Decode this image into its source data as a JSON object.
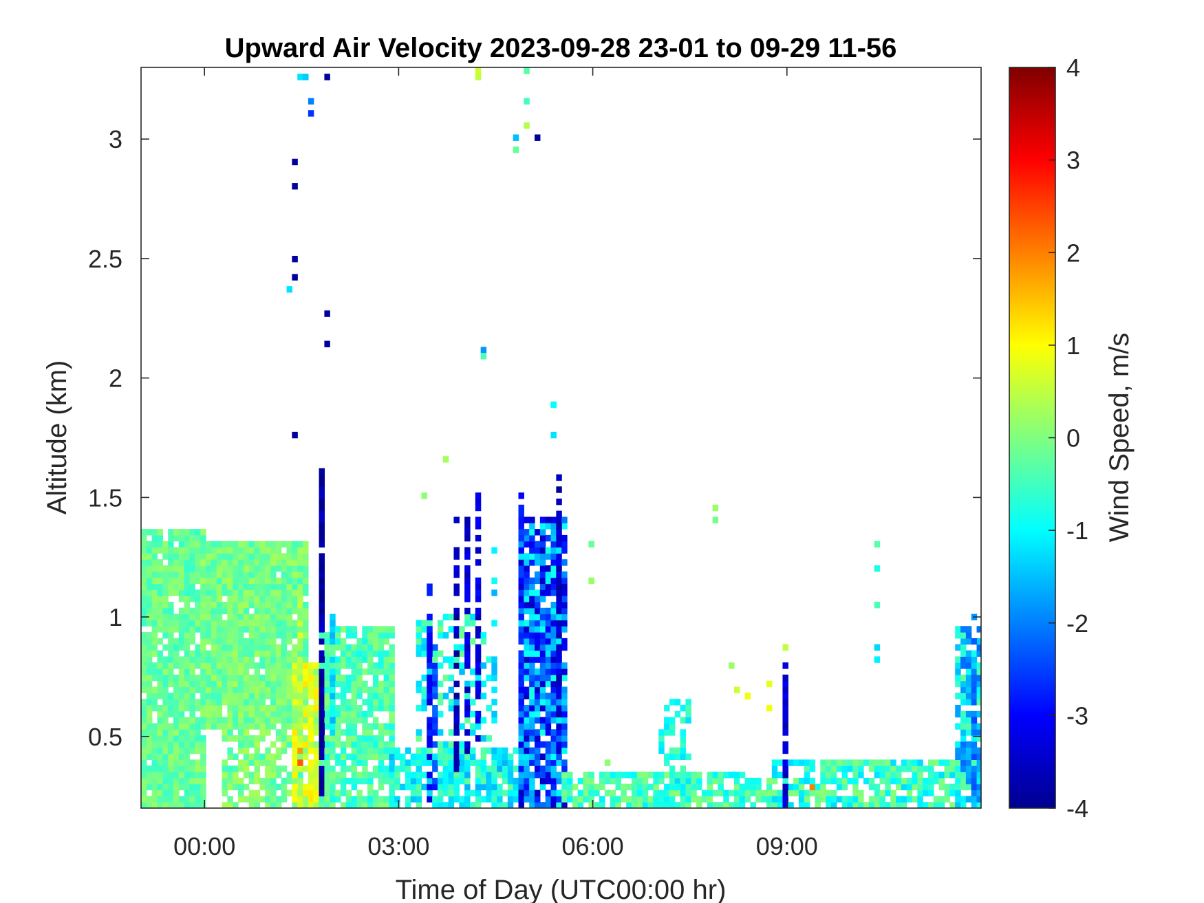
{
  "chart_data": {
    "type": "heatmap",
    "title": "Upward Air Velocity 2023-09-28 23-01 to 09-29 11-56",
    "xlabel": "Time of Day (UTC00:00 hr)",
    "ylabel": "Altitude (km)",
    "colorbar_label": "Wind Speed, m/s",
    "x_unit": "hours relative to 00:00 UTC (2023-09-29)",
    "xlim": [
      -0.98,
      12.0
    ],
    "ylim": [
      0.2,
      3.3
    ],
    "x_ticks": [
      0,
      3,
      6,
      9
    ],
    "x_tick_labels": [
      "00:00",
      "03:00",
      "06:00",
      "09:00"
    ],
    "y_ticks": [
      0.5,
      1,
      1.5,
      2,
      2.5,
      3
    ],
    "y_tick_labels": [
      "0.5",
      "1",
      "1.5",
      "2",
      "2.5",
      "3"
    ],
    "colorbar_range": [
      -4,
      4
    ],
    "colorbar_ticks": [
      -4,
      -3,
      -2,
      -1,
      0,
      1,
      2,
      3,
      4
    ],
    "colormap": "jet",
    "colormap_stops": [
      "#00008f",
      "#0000ff",
      "#00ffff",
      "#ffff00",
      "#ff0000",
      "#800000"
    ],
    "cell_size": {
      "dx_hours": 0.0833,
      "dz_km": 0.0254
    },
    "grid": false,
    "regions": [
      {
        "t0": -0.98,
        "t1": 0.0,
        "z0": 0.2,
        "z1": 1.35,
        "v": -0.2,
        "spread": 0.4,
        "fill": 0.92
      },
      {
        "t0": 0.0,
        "t1": 1.6,
        "z0": 0.55,
        "z1": 1.3,
        "v": -0.1,
        "spread": 0.4,
        "fill": 0.95
      },
      {
        "t0": 0.3,
        "t1": 1.5,
        "z0": 0.2,
        "z1": 0.55,
        "v": -0.1,
        "spread": 0.45,
        "fill": 0.75
      },
      {
        "t0": 1.4,
        "t1": 1.7,
        "z0": 0.2,
        "z1": 0.8,
        "v": 0.6,
        "spread": 0.6,
        "fill": 0.85
      },
      {
        "t0": 1.8,
        "t1": 2.9,
        "z0": 0.2,
        "z1": 0.95,
        "v": -0.4,
        "spread": 0.5,
        "fill": 0.82
      },
      {
        "t0": 2.9,
        "t1": 4.9,
        "z0": 0.2,
        "z1": 0.45,
        "v": -0.9,
        "spread": 0.7,
        "fill": 0.8
      },
      {
        "t0": 3.3,
        "t1": 4.4,
        "z0": 0.45,
        "z1": 1.0,
        "v": -0.8,
        "spread": 0.8,
        "fill": 0.35
      },
      {
        "t0": 4.9,
        "t1": 5.6,
        "z0": 0.2,
        "z1": 1.4,
        "v": -2.2,
        "spread": 1.4,
        "fill": 0.88
      },
      {
        "t0": 5.6,
        "t1": 8.8,
        "z0": 0.2,
        "z1": 0.33,
        "v": -0.5,
        "spread": 0.6,
        "fill": 0.7
      },
      {
        "t0": 7.1,
        "t1": 7.5,
        "z0": 0.2,
        "z1": 0.65,
        "v": -0.8,
        "spread": 0.5,
        "fill": 0.55
      },
      {
        "t0": 8.8,
        "t1": 11.6,
        "z0": 0.2,
        "z1": 0.38,
        "v": -0.6,
        "spread": 0.7,
        "fill": 0.72
      },
      {
        "t0": 11.6,
        "t1": 12.0,
        "z0": 0.2,
        "z1": 0.95,
        "v": -1.2,
        "spread": 1.0,
        "fill": 0.75
      }
    ],
    "columns": [
      {
        "t": 1.45,
        "z0": 0.2,
        "z1": 1.1,
        "v": 0.4,
        "fill": 0.8
      },
      {
        "t": 1.8,
        "z0": 0.2,
        "z1": 1.6,
        "v": -3.8,
        "fill": 0.85
      },
      {
        "t": 2.0,
        "z0": 0.5,
        "z1": 1.05,
        "v": -1.2,
        "fill": 0.7
      },
      {
        "t": 3.5,
        "z0": 0.2,
        "z1": 1.2,
        "v": -3.0,
        "fill": 0.6
      },
      {
        "t": 3.6,
        "z0": 0.3,
        "z1": 0.95,
        "v": -2.5,
        "fill": 0.7
      },
      {
        "t": 3.9,
        "z0": 0.35,
        "z1": 1.4,
        "v": -3.6,
        "fill": 0.55
      },
      {
        "t": 4.05,
        "z0": 0.45,
        "z1": 1.4,
        "v": -3.4,
        "fill": 0.6
      },
      {
        "t": 4.25,
        "z0": 0.5,
        "z1": 1.5,
        "v": -3.2,
        "fill": 0.55
      },
      {
        "t": 4.45,
        "z0": 0.45,
        "z1": 1.3,
        "v": -1.2,
        "fill": 0.45
      },
      {
        "t": 4.9,
        "z0": 0.6,
        "z1": 1.5,
        "v": -2.8,
        "fill": 0.7
      },
      {
        "t": 5.5,
        "z0": 0.6,
        "z1": 1.6,
        "v": -3.5,
        "fill": 0.7
      },
      {
        "t": 9.0,
        "z0": 0.2,
        "z1": 0.8,
        "v": -3.3,
        "fill": 0.8
      },
      {
        "t": 11.9,
        "z0": 0.3,
        "z1": 1.0,
        "v": -2.2,
        "fill": 0.6
      }
    ],
    "isolated_cells": [
      {
        "t": 1.5,
        "z": 3.25,
        "v": -1.2
      },
      {
        "t": 1.6,
        "z": 3.25,
        "v": -1.4
      },
      {
        "t": 1.65,
        "z": 3.1,
        "v": -2.6
      },
      {
        "t": 1.65,
        "z": 3.15,
        "v": -2.0
      },
      {
        "t": 1.9,
        "z": 3.26,
        "v": -3.9
      },
      {
        "t": 1.4,
        "z": 2.9,
        "v": -3.9
      },
      {
        "t": 1.4,
        "z": 2.8,
        "v": -3.9
      },
      {
        "t": 1.4,
        "z": 2.49,
        "v": -3.9
      },
      {
        "t": 1.4,
        "z": 2.41,
        "v": -3.9
      },
      {
        "t": 1.33,
        "z": 2.36,
        "v": -1.2
      },
      {
        "t": 1.9,
        "z": 2.26,
        "v": -3.9
      },
      {
        "t": 1.9,
        "z": 2.15,
        "v": -3.9
      },
      {
        "t": 1.4,
        "z": 1.76,
        "v": -3.9
      },
      {
        "t": 4.2,
        "z": 3.27,
        "v": 0.5
      },
      {
        "t": 4.25,
        "z": 3.29,
        "v": 0.6
      },
      {
        "t": 4.3,
        "z": 2.12,
        "v": -1.8
      },
      {
        "t": 4.3,
        "z": 2.08,
        "v": -0.4
      },
      {
        "t": 4.95,
        "z": 3.28,
        "v": -0.3
      },
      {
        "t": 5.0,
        "z": 3.15,
        "v": -0.5
      },
      {
        "t": 5.0,
        "z": 3.05,
        "v": 0.4
      },
      {
        "t": 4.85,
        "z": 3.0,
        "v": -1.5
      },
      {
        "t": 4.85,
        "z": 2.95,
        "v": -0.2
      },
      {
        "t": 5.15,
        "z": 3.0,
        "v": -3.9
      },
      {
        "t": 5.4,
        "z": 1.9,
        "v": -1.0
      },
      {
        "t": 5.4,
        "z": 1.75,
        "v": -1.2
      },
      {
        "t": 3.7,
        "z": 1.65,
        "v": 0.3
      },
      {
        "t": 3.4,
        "z": 1.5,
        "v": 0.1
      },
      {
        "t": 6.0,
        "z": 1.3,
        "v": -0.2
      },
      {
        "t": 6.0,
        "z": 1.15,
        "v": 0.2
      },
      {
        "t": 7.85,
        "z": 1.45,
        "v": 0.2
      },
      {
        "t": 7.85,
        "z": 1.4,
        "v": -0.1
      },
      {
        "t": 10.35,
        "z": 1.3,
        "v": -0.3
      },
      {
        "t": 10.35,
        "z": 1.2,
        "v": -0.8
      },
      {
        "t": 10.35,
        "z": 1.05,
        "v": -0.4
      },
      {
        "t": 10.35,
        "z": 0.88,
        "v": -1.3
      },
      {
        "t": 10.35,
        "z": 0.83,
        "v": -1.1
      },
      {
        "t": 8.1,
        "z": 0.8,
        "v": 0.2
      },
      {
        "t": 8.2,
        "z": 0.7,
        "v": 0.6
      },
      {
        "t": 8.4,
        "z": 0.68,
        "v": 0.9
      },
      {
        "t": 8.7,
        "z": 0.73,
        "v": 0.8
      },
      {
        "t": 8.7,
        "z": 0.62,
        "v": 0.9
      },
      {
        "t": 8.95,
        "z": 0.88,
        "v": 0.5
      },
      {
        "t": 6.2,
        "z": 0.4,
        "v": 0.1
      },
      {
        "t": 9.4,
        "z": 0.3,
        "v": 2.0
      },
      {
        "t": 1.45,
        "z": 0.45,
        "v": 1.8
      },
      {
        "t": 1.5,
        "z": 0.4,
        "v": 2.3
      }
    ]
  }
}
